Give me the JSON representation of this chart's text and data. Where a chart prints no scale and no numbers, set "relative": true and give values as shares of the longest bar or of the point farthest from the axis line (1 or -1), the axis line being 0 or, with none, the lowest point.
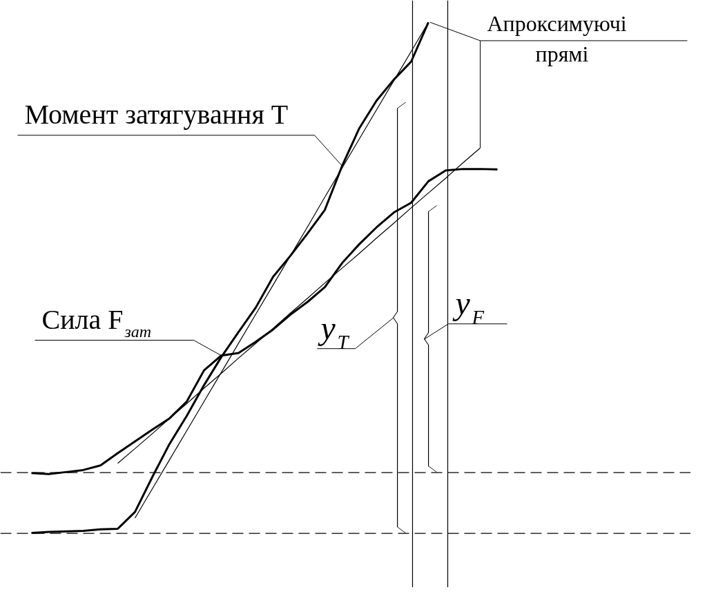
{
  "chart_data": {
    "type": "line",
    "relative": true,
    "tick_labels": false,
    "grid": false,
    "categories": [
      null,
      null,
      null,
      null,
      null,
      null,
      null,
      null,
      null,
      null,
      null,
      null,
      null,
      null,
      null,
      null,
      null,
      null,
      null,
      null,
      null,
      null,
      null,
      null,
      null,
      null,
      null,
      null,
      null,
      null
    ],
    "series": [
      {
        "color": "#000000",
        "values": [
          null,
          0.001,
          0.003,
          0.004,
          0.005,
          0.008,
          0.009,
          0.042,
          0.11,
          0.175,
          0.23,
          0.29,
          0.345,
          0.394,
          0.442,
          0.502,
          0.543,
          0.587,
          0.633,
          0.719,
          0.793,
          0.847,
          0.888,
          0.923,
          1.0,
          null,
          null,
          null,
          null,
          null
        ]
      },
      {
        "color": "#000000",
        "values": [
          null,
          0.118,
          0.116,
          0.12,
          0.124,
          0.133,
          0.157,
          0.18,
          0.203,
          0.225,
          0.258,
          0.319,
          0.348,
          0.353,
          0.375,
          0.399,
          0.428,
          0.453,
          0.482,
          0.529,
          0.566,
          0.599,
          0.628,
          0.647,
          0.689,
          0.71,
          0.713,
          0.713,
          0.712,
          null
        ]
      },
      {
        "type": "line",
        "color": "#000000",
        "values": [
          null,
          null,
          null,
          null,
          null,
          null,
          null,
          0.03,
          0.087,
          0.144,
          0.201,
          0.258,
          0.315,
          0.372,
          0.429,
          0.486,
          0.543,
          0.6,
          0.658,
          0.715,
          0.772,
          0.829,
          0.886,
          0.943,
          1.0,
          null,
          null,
          null,
          null,
          null
        ]
      },
      {
        "type": "line",
        "color": "#000000",
        "values": [
          null,
          null,
          null,
          null,
          null,
          null,
          0.137,
          0.166,
          0.195,
          0.225,
          0.254,
          0.284,
          0.313,
          0.343,
          0.372,
          0.401,
          0.431,
          0.46,
          0.49,
          0.519,
          0.548,
          0.578,
          0.607,
          0.637,
          0.666,
          0.695,
          0.725,
          0.754,
          null,
          null
        ]
      }
    ],
    "ref_lines": [
      {
        "axis": "y",
        "value": 0.119,
        "color": "#000000",
        "line_style": "dashed"
      },
      {
        "axis": "y",
        "value": 0,
        "color": "#000000",
        "line_style": "dashed"
      }
    ],
    "annotations": [
      "Момент затягування T",
      "Сила F$_{зат}$",
      "Апроксимуючі прямі",
      "y$_{T}$",
      "y$_{F}$"
    ]
  }
}
